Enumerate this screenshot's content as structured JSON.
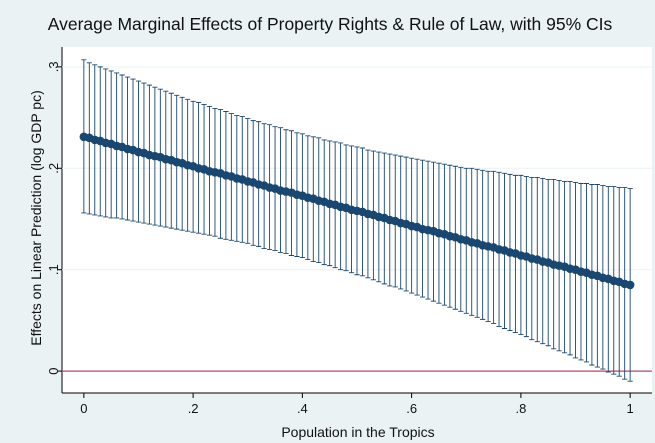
{
  "chart_data": {
    "type": "errorline",
    "title": "Average Marginal Effects of Property Rights & Rule of Law, with 95% CIs",
    "x_label": "Population in the Tropics",
    "y_label": "Effects on Linear Prediction (log GDP pc)",
    "x": [
      0,
      0.01,
      0.02,
      0.03,
      0.04,
      0.05,
      0.06,
      0.07,
      0.08,
      0.09,
      0.1,
      0.11,
      0.12,
      0.13,
      0.14,
      0.15,
      0.16,
      0.17,
      0.18,
      0.19,
      0.2,
      0.21,
      0.22,
      0.23,
      0.24,
      0.25,
      0.26,
      0.27,
      0.28,
      0.29,
      0.3,
      0.31,
      0.32,
      0.33,
      0.34,
      0.35,
      0.36,
      0.37,
      0.38,
      0.39,
      0.4,
      0.41,
      0.42,
      0.43,
      0.44,
      0.45,
      0.46,
      0.47,
      0.48,
      0.49,
      0.5,
      0.51,
      0.52,
      0.53,
      0.54,
      0.55,
      0.56,
      0.57,
      0.58,
      0.59,
      0.6,
      0.61,
      0.62,
      0.63,
      0.64,
      0.65,
      0.66,
      0.67,
      0.68,
      0.69,
      0.7,
      0.71,
      0.72,
      0.73,
      0.74,
      0.75,
      0.76,
      0.77,
      0.78,
      0.79,
      0.8,
      0.81,
      0.82,
      0.83,
      0.84,
      0.85,
      0.86,
      0.87,
      0.88,
      0.89,
      0.9,
      0.91,
      0.92,
      0.93,
      0.94,
      0.95,
      0.96,
      0.97,
      0.98,
      0.99,
      1
    ],
    "values": [
      0.231,
      0.23,
      0.228,
      0.227,
      0.225,
      0.224,
      0.222,
      0.221,
      0.219,
      0.218,
      0.216,
      0.215,
      0.213,
      0.212,
      0.211,
      0.209,
      0.208,
      0.206,
      0.205,
      0.203,
      0.202,
      0.2,
      0.199,
      0.197,
      0.196,
      0.195,
      0.193,
      0.192,
      0.19,
      0.189,
      0.187,
      0.186,
      0.184,
      0.183,
      0.181,
      0.18,
      0.178,
      0.177,
      0.176,
      0.174,
      0.173,
      0.171,
      0.17,
      0.168,
      0.167,
      0.165,
      0.164,
      0.162,
      0.161,
      0.159,
      0.158,
      0.157,
      0.155,
      0.154,
      0.152,
      0.151,
      0.149,
      0.148,
      0.146,
      0.145,
      0.143,
      0.142,
      0.14,
      0.139,
      0.138,
      0.136,
      0.135,
      0.133,
      0.132,
      0.13,
      0.129,
      0.127,
      0.126,
      0.124,
      0.123,
      0.122,
      0.12,
      0.119,
      0.117,
      0.116,
      0.114,
      0.113,
      0.111,
      0.11,
      0.108,
      0.107,
      0.105,
      0.104,
      0.103,
      0.101,
      0.1,
      0.098,
      0.097,
      0.095,
      0.094,
      0.092,
      0.091,
      0.089,
      0.088,
      0.086,
      0.085
    ],
    "lower": [
      0.156,
      0.155,
      0.154,
      0.153,
      0.152,
      0.151,
      0.151,
      0.15,
      0.149,
      0.148,
      0.147,
      0.146,
      0.145,
      0.144,
      0.143,
      0.142,
      0.141,
      0.14,
      0.139,
      0.138,
      0.137,
      0.136,
      0.135,
      0.134,
      0.133,
      0.131,
      0.13,
      0.129,
      0.128,
      0.127,
      0.126,
      0.124,
      0.123,
      0.121,
      0.12,
      0.119,
      0.117,
      0.116,
      0.114,
      0.113,
      0.112,
      0.11,
      0.108,
      0.107,
      0.105,
      0.104,
      0.102,
      0.1,
      0.099,
      0.097,
      0.095,
      0.094,
      0.092,
      0.09,
      0.088,
      0.086,
      0.084,
      0.083,
      0.081,
      0.079,
      0.077,
      0.075,
      0.073,
      0.071,
      0.069,
      0.067,
      0.065,
      0.063,
      0.061,
      0.059,
      0.057,
      0.055,
      0.053,
      0.051,
      0.049,
      0.047,
      0.044,
      0.042,
      0.04,
      0.038,
      0.036,
      0.034,
      0.031,
      0.029,
      0.027,
      0.025,
      0.022,
      0.02,
      0.018,
      0.016,
      0.013,
      0.011,
      0.009,
      0.006,
      0.004,
      0.002,
      -0.001,
      -0.003,
      -0.005,
      -0.008,
      -0.01
    ],
    "upper": [
      0.307,
      0.304,
      0.302,
      0.3,
      0.298,
      0.296,
      0.294,
      0.292,
      0.29,
      0.288,
      0.286,
      0.284,
      0.282,
      0.28,
      0.278,
      0.276,
      0.274,
      0.272,
      0.27,
      0.268,
      0.266,
      0.265,
      0.263,
      0.261,
      0.259,
      0.258,
      0.256,
      0.254,
      0.252,
      0.251,
      0.249,
      0.247,
      0.246,
      0.244,
      0.243,
      0.241,
      0.24,
      0.238,
      0.237,
      0.235,
      0.234,
      0.232,
      0.231,
      0.23,
      0.228,
      0.227,
      0.226,
      0.225,
      0.223,
      0.222,
      0.221,
      0.22,
      0.218,
      0.217,
      0.216,
      0.215,
      0.214,
      0.213,
      0.212,
      0.211,
      0.21,
      0.209,
      0.208,
      0.207,
      0.206,
      0.205,
      0.204,
      0.203,
      0.202,
      0.201,
      0.2,
      0.2,
      0.199,
      0.198,
      0.197,
      0.197,
      0.196,
      0.195,
      0.194,
      0.193,
      0.193,
      0.192,
      0.191,
      0.191,
      0.19,
      0.189,
      0.189,
      0.188,
      0.187,
      0.187,
      0.186,
      0.185,
      0.185,
      0.184,
      0.184,
      0.183,
      0.182,
      0.182,
      0.181,
      0.181,
      0.18
    ],
    "color": "#1a476f",
    "ci_color": "#1a476f",
    "hline": 0,
    "hline_color": "#b5466f",
    "xlim": [
      -0.04,
      1.04
    ],
    "xticks": [
      0,
      {
        "value": 0.2,
        "label": ".2"
      },
      {
        "value": 0.4,
        "label": ".4"
      },
      {
        "value": 0.6,
        "label": ".6"
      },
      {
        "value": 0.8,
        "label": ".8"
      },
      1
    ],
    "ylim": [
      -0.0216,
      0.3196
    ],
    "yticks": [
      0,
      {
        "value": 0.1,
        "label": ".1"
      },
      {
        "value": 0.2,
        "label": ".2"
      },
      {
        "value": 0.3,
        "label": ".3"
      }
    ],
    "grid": true
  }
}
